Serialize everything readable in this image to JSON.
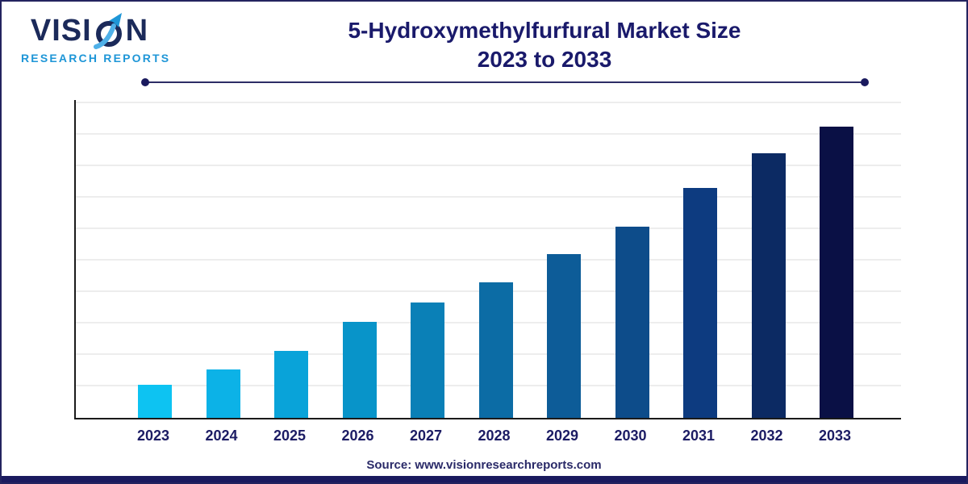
{
  "page": {
    "background": "#ffffff",
    "border_color": "#23235f",
    "bottom_bar_color": "#1a1a5e"
  },
  "logo": {
    "name": "VISION",
    "name_pre": "VISI",
    "name_post": "N",
    "subtitle": "RESEARCH REPORTS",
    "name_color": "#1b2a5a",
    "subtitle_color": "#1e96d7",
    "o_icon": "arrow-swoosh-o-icon",
    "icon_colors": {
      "ring": "#1b2a5a",
      "swoosh": "#4fb0e8",
      "swoosh_dark": "#1e96d7"
    }
  },
  "header": {
    "title_line1": "5-Hydroxymethylfurfural Market Size",
    "title_line2": "2023 to 2033",
    "title_color": "#1a1a6b"
  },
  "chart_data": {
    "type": "bar",
    "title": "5-Hydroxymethylfurfural Market Size 2023 to 2033",
    "categories": [
      "2023",
      "2024",
      "2025",
      "2026",
      "2027",
      "2028",
      "2029",
      "2030",
      "2031",
      "2032",
      "2033"
    ],
    "values": [
      1.05,
      1.54,
      2.13,
      3.05,
      3.67,
      4.31,
      5.2,
      6.08,
      7.3,
      8.4,
      9.26
    ],
    "value_note": "relative scale; no y-axis tick labels shown in chart",
    "xlabel": "",
    "ylabel": "",
    "ylim": [
      0,
      10.15
    ],
    "gridline_count": 10,
    "grid": true,
    "legend": false,
    "gridline_color": "#ededed",
    "axis_color": "#1a1a1a",
    "bar_colors": [
      "#0dc3f2",
      "#0cb2e7",
      "#09a3d9",
      "#0894c9",
      "#0a80b7",
      "#0c6ca5",
      "#0d5c98",
      "#0d4c8a",
      "#0d3b80",
      "#0c2a63",
      "#0a1045"
    ]
  },
  "footer": {
    "source_text": "Source: www.visionresearchreports.com",
    "source_color": "#2a2a68"
  }
}
